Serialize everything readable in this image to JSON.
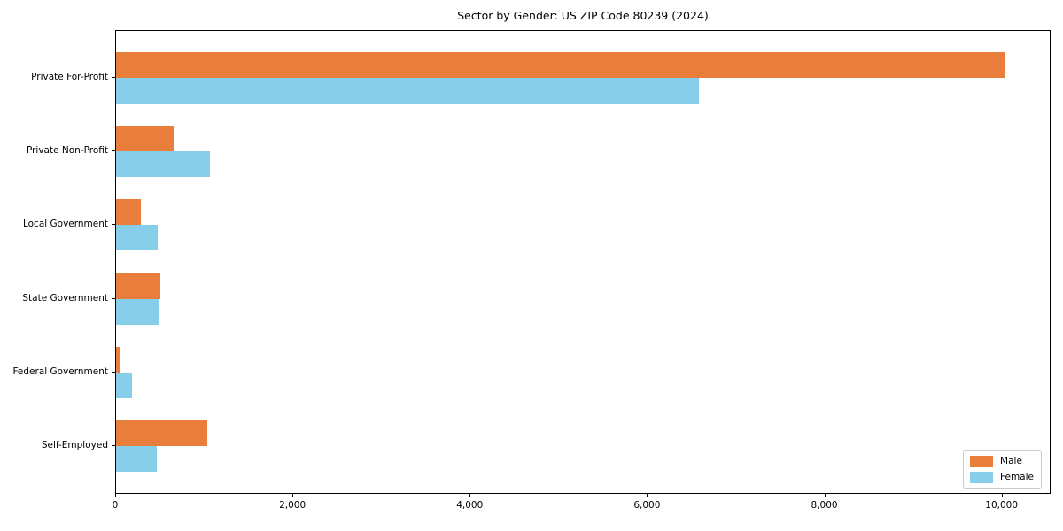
{
  "chart_data": {
    "type": "bar",
    "orientation": "horizontal",
    "title": "Sector by Gender: US ZIP Code 80239 (2024)",
    "categories": [
      "Private For-Profit",
      "Private Non-Profit",
      "Local Government",
      "State Government",
      "Federal Government",
      "Self-Employed"
    ],
    "series": [
      {
        "name": "Male",
        "color": "#e87d3c",
        "values": [
          10030,
          650,
          280,
          500,
          40,
          1030
        ]
      },
      {
        "name": "Female",
        "color": "#87ceeb",
        "values": [
          6580,
          1060,
          470,
          480,
          180,
          460
        ]
      }
    ],
    "xlabel": "",
    "ylabel": "",
    "xlim": [
      0,
      10533
    ],
    "xticks": [
      0,
      2000,
      4000,
      6000,
      8000,
      10000
    ],
    "xtick_labels": [
      "0",
      "2,000",
      "4,000",
      "6,000",
      "8,000",
      "10,000"
    ],
    "grid": false,
    "bar_height_units": 0.35,
    "legend": {
      "position": "lower right"
    }
  }
}
